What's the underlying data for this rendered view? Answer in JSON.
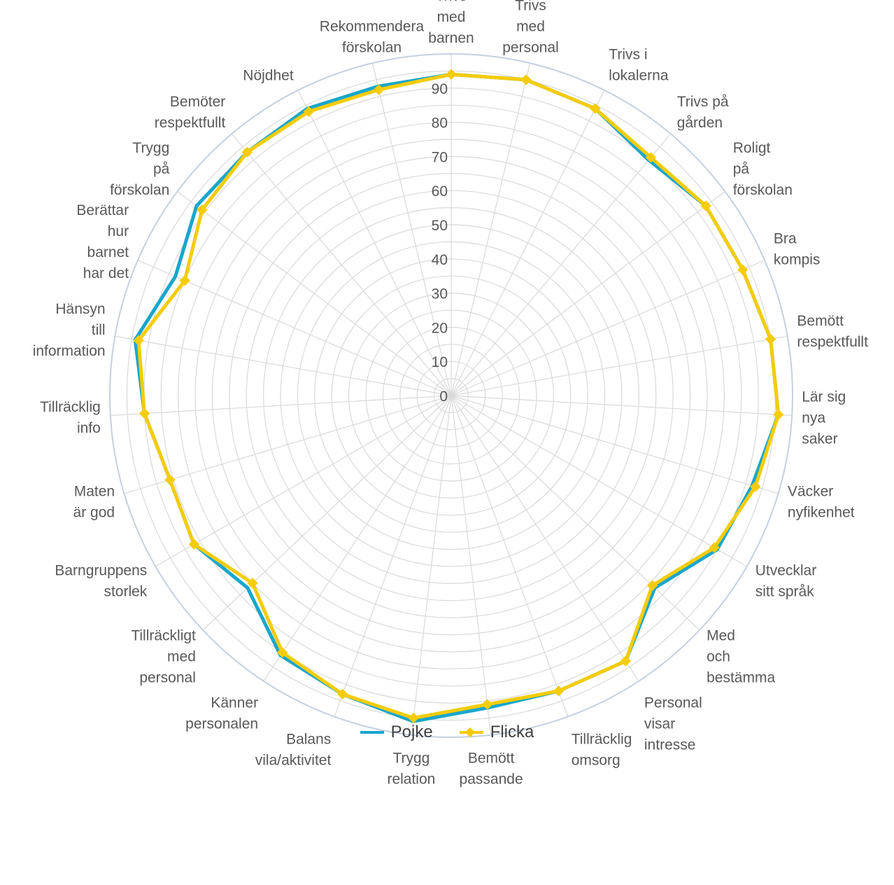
{
  "chart_data": {
    "type": "radar",
    "title": "",
    "categories": [
      "Trivs med barnen",
      "Trivs med personal",
      "Trivs i lokalerna",
      "Trivs på gården",
      "Roligt på förskolan",
      "Bra kompis",
      "Bemött respektfullt",
      "Lär sig nya saker",
      "Väcker nyfikenhet",
      "Utvecklar sitt språk",
      "Med och bestämma",
      "Personal visar intresse",
      "Tillräcklig omsorg",
      "Bemött passande",
      "Trygg relation",
      "Balans vila/aktivitet",
      "Känner personalen",
      "Tillräckligt med personal",
      "Barngruppens storlek",
      "Maten är god",
      "Tillräcklig info",
      "Hänsyn till information",
      "Berättar hur barnet har det",
      "Trygg på förskolan",
      "Bemöter respektfullt",
      "Nöjdhet",
      "Rekommendera förskolan"
    ],
    "category_lines": [
      [
        "Trivs",
        "med",
        "barnen"
      ],
      [
        "Trivs",
        "med",
        "personal"
      ],
      [
        "Trivs i",
        "lokalerna"
      ],
      [
        "Trivs på",
        "gården"
      ],
      [
        "Roligt",
        "på",
        "förskolan"
      ],
      [
        "Bra",
        "kompis"
      ],
      [
        "Bemött",
        "respektfullt"
      ],
      [
        "Lär sig",
        "nya",
        "saker"
      ],
      [
        "Väcker",
        "nyfikenhet"
      ],
      [
        "Utvecklar",
        "sitt språk"
      ],
      [
        "Med",
        "och",
        "bestämma"
      ],
      [
        "Personal",
        "visar",
        "intresse"
      ],
      [
        "Tillräcklig",
        "omsorg"
      ],
      [
        "Bemött",
        "passande"
      ],
      [
        "Trygg",
        "relation"
      ],
      [
        "Balans",
        "vila/aktivitet"
      ],
      [
        "Känner",
        "personalen"
      ],
      [
        "Tillräckligt",
        "med",
        "personal"
      ],
      [
        "Barngruppens",
        "storlek"
      ],
      [
        "Maten",
        "är god"
      ],
      [
        "Tillräcklig",
        "info"
      ],
      [
        "Hänsyn",
        "till",
        "information"
      ],
      [
        "Berättar",
        "hur",
        "barnet",
        "har det"
      ],
      [
        "Trygg",
        "på",
        "förskolan"
      ],
      [
        "Bemöter",
        "respektfullt"
      ],
      [
        "Nöjdhet"
      ],
      [
        "Rekommendera",
        "förskolan"
      ]
    ],
    "series": [
      {
        "name": "Pojke",
        "color": "#1aa6cc",
        "marker": "none",
        "values": [
          94,
          95,
          94,
          90,
          93,
          93,
          95,
          96,
          92,
          90,
          82,
          93,
          92,
          92,
          96,
          93,
          91,
          82,
          87,
          86,
          90,
          94,
          88,
          93,
          93,
          94,
          93
        ]
      },
      {
        "name": "Flicka",
        "color": "#f5cc0a",
        "marker": "diamond",
        "values": [
          94,
          95,
          94,
          91,
          93,
          93,
          95,
          96,
          93,
          89,
          81,
          93,
          92,
          91,
          95,
          93,
          90,
          80,
          87,
          86,
          90,
          93,
          85,
          91,
          93,
          93,
          92
        ]
      }
    ],
    "rlim": [
      0,
      100
    ],
    "ticks": [
      0,
      10,
      20,
      30,
      40,
      50,
      60,
      70,
      80,
      90
    ],
    "grid": true,
    "legend": "bottom",
    "grid_color": "#d9d9d9",
    "outer_ring_color": "#c5d0e0"
  },
  "legend": {
    "items": [
      {
        "label": "Pojke",
        "color": "#1aa6cc",
        "marker": "none"
      },
      {
        "label": "Flicka",
        "color": "#f5cc0a",
        "marker": "diamond"
      }
    ]
  }
}
